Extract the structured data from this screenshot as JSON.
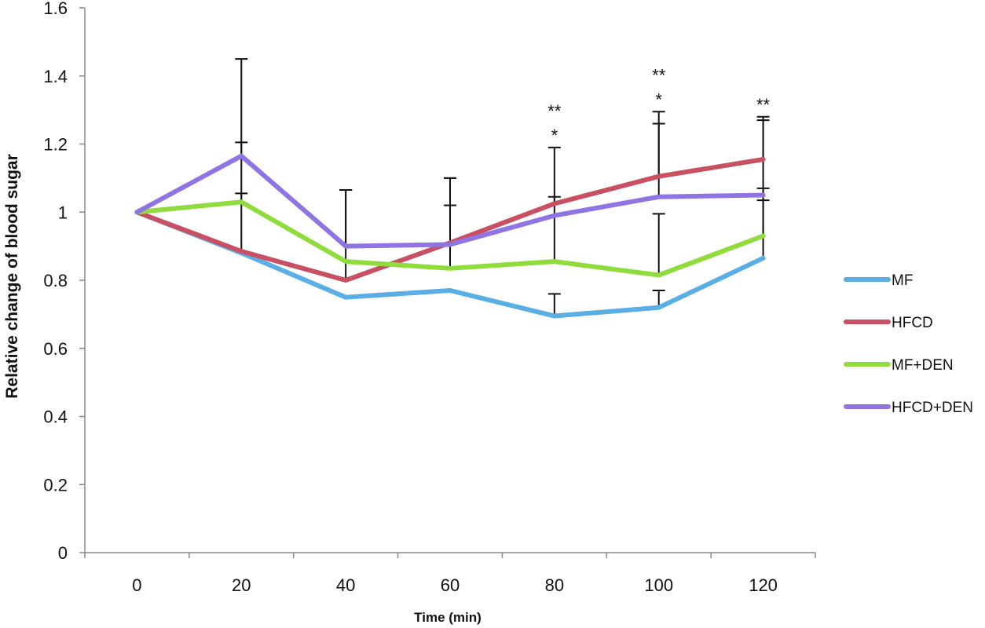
{
  "chart_data": {
    "type": "line",
    "title": "",
    "xlabel": "Time (min)",
    "ylabel": "Relative change of blood sugar",
    "x": [
      0,
      20,
      40,
      60,
      80,
      100,
      120
    ],
    "xticks": [
      "0",
      "20",
      "40",
      "60",
      "80",
      "100",
      "120"
    ],
    "ylim": [
      0,
      1.6
    ],
    "yticks": [
      "0",
      "0.2",
      "0.4",
      "0.6",
      "0.8",
      "1",
      "1.2",
      "1.4",
      "1.6"
    ],
    "grid": false,
    "legend_position": "right",
    "series": [
      {
        "name": "MF",
        "color": "#5aaee6",
        "values": [
          1.0,
          0.88,
          0.75,
          0.77,
          0.695,
          0.72,
          0.865
        ]
      },
      {
        "name": "HFCD",
        "color": "#c94f63",
        "values": [
          1.0,
          0.885,
          0.8,
          0.91,
          1.025,
          1.105,
          1.155
        ]
      },
      {
        "name": "MF+DEN",
        "color": "#8fdc3c",
        "values": [
          1.0,
          1.03,
          0.855,
          0.835,
          0.855,
          0.815,
          0.93
        ]
      },
      {
        "name": "HFCD+DEN",
        "color": "#8f74e3",
        "values": [
          1.0,
          1.165,
          0.9,
          0.905,
          0.99,
          1.045,
          1.05
        ]
      }
    ],
    "error_bars": [
      {
        "x": 20,
        "from": 1.165,
        "to": 1.45
      },
      {
        "x": 20,
        "from": 1.03,
        "to": 1.205
      },
      {
        "x": 20,
        "from": 0.88,
        "to": 1.055
      },
      {
        "x": 40,
        "from": 0.8,
        "to": 1.065
      },
      {
        "x": 40,
        "from": 0.9,
        "to": 1.065
      },
      {
        "x": 60,
        "from": 0.91,
        "to": 1.1
      },
      {
        "x": 60,
        "from": 0.835,
        "to": 1.02
      },
      {
        "x": 60,
        "from": 0.905,
        "to": 1.1
      },
      {
        "x": 80,
        "from": 1.025,
        "to": 1.19
      },
      {
        "x": 80,
        "from": 0.695,
        "to": 0.76
      },
      {
        "x": 80,
        "from": 0.855,
        "to": 1.045
      },
      {
        "x": 100,
        "from": 1.105,
        "to": 1.295
      },
      {
        "x": 100,
        "from": 0.72,
        "to": 0.77
      },
      {
        "x": 100,
        "from": 0.815,
        "to": 0.995
      },
      {
        "x": 100,
        "from": 1.045,
        "to": 1.26
      },
      {
        "x": 120,
        "from": 1.155,
        "to": 1.28
      },
      {
        "x": 120,
        "from": 0.93,
        "to": 1.035
      },
      {
        "x": 120,
        "from": 1.05,
        "to": 1.27
      },
      {
        "x": 120,
        "from": 0.865,
        "to": 1.07
      }
    ],
    "annotations": [
      {
        "x": 80,
        "lines": [
          "**",
          "*"
        ]
      },
      {
        "x": 100,
        "lines": [
          "**",
          "*"
        ]
      },
      {
        "x": 120,
        "lines": [
          "**"
        ]
      }
    ]
  }
}
